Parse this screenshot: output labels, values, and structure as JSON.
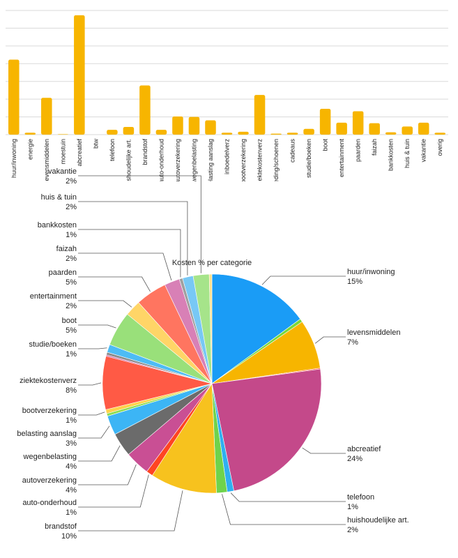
{
  "chart_data": [
    {
      "type": "bar",
      "categories": [
        "huur/inwoning",
        "energie",
        "levensmiddelen",
        "moestuin",
        "abcreatief",
        "btw",
        "telefoon",
        "huishoudelijke art.",
        "brandstof",
        "auto-onderhoud",
        "autoverzekering",
        "wegenbelasting",
        "belasting aanslag",
        "inboedelverz",
        "bootverzekering",
        "ziektekostenverz",
        "kleding/schoenen",
        "cadeaus",
        "studie/boeken",
        "boot",
        "entertainment",
        "paarden",
        "faizah",
        "bankkosten",
        "huis & tuin",
        "vakantie",
        "overig"
      ],
      "values": [
        15.7,
        0.4,
        7.7,
        0.1,
        25.0,
        0.0,
        1.0,
        1.6,
        10.3,
        1.0,
        3.8,
        3.7,
        3.0,
        0.4,
        0.6,
        8.3,
        0.2,
        0.4,
        1.2,
        5.4,
        2.5,
        4.9,
        2.4,
        0.5,
        1.7,
        2.5,
        0.4
      ],
      "color": "#f7b500",
      "grid": true
    },
    {
      "type": "pie",
      "title": "Kosten % per categorie",
      "slices": [
        {
          "name": "huur/inwoning",
          "value": 15.2,
          "color": "#1a9cf6",
          "label": true,
          "pct": "15%"
        },
        {
          "name": "energie",
          "value": 0.5,
          "color": "#7ad83a",
          "label": false
        },
        {
          "name": "levensmiddelen",
          "value": 7.4,
          "color": "#f7b500",
          "label": true,
          "pct": "7%"
        },
        {
          "name": "moestuin",
          "value": 0.15,
          "color": "#ff5b3a",
          "label": false
        },
        {
          "name": "abcreatief",
          "value": 24.3,
          "color": "#c4498a",
          "label": true,
          "pct": "24%"
        },
        {
          "name": "telefoon",
          "value": 1.0,
          "color": "#2fb0f0",
          "label": true,
          "pct": "1%"
        },
        {
          "name": "huishoudelijke art.",
          "value": 1.6,
          "color": "#6fd34c",
          "label": true,
          "pct": "2%"
        },
        {
          "name": "brandstof",
          "value": 10.0,
          "color": "#f7c21e",
          "label": true,
          "pct": "10%"
        },
        {
          "name": "auto-onderhoud",
          "value": 1.0,
          "color": "#ff4422",
          "label": true,
          "pct": "1%"
        },
        {
          "name": "autoverzekering",
          "value": 3.7,
          "color": "#c94f94",
          "label": true,
          "pct": "4%"
        },
        {
          "name": "wegenbelasting",
          "value": 3.6,
          "color": "#6b6b6b",
          "label": true,
          "pct": "4%"
        },
        {
          "name": "belasting aanslag",
          "value": 2.9,
          "color": "#3cb5f5",
          "label": true,
          "pct": "3%"
        },
        {
          "name": "inboedelverz",
          "value": 0.4,
          "color": "#8ddd52",
          "label": false
        },
        {
          "name": "bootverzekering",
          "value": 0.6,
          "color": "#ffd24a",
          "label": true,
          "pct": "1%"
        },
        {
          "name": "ziektekostenverz",
          "value": 8.0,
          "color": "#ff5a45",
          "label": true,
          "pct": "8%"
        },
        {
          "name": "kleding/schoenen",
          "value": 0.2,
          "color": "#d16aa8",
          "label": false
        },
        {
          "name": "cadeaus",
          "value": 0.4,
          "color": "#8a8a8a",
          "label": false
        },
        {
          "name": "studie/boeken",
          "value": 1.2,
          "color": "#4dbcf5",
          "label": true,
          "pct": "1%"
        },
        {
          "name": "boot",
          "value": 5.2,
          "color": "#99e07a",
          "label": true,
          "pct": "5%"
        },
        {
          "name": "entertainment",
          "value": 2.4,
          "color": "#ffd567",
          "label": true,
          "pct": "2%"
        },
        {
          "name": "paarden",
          "value": 4.7,
          "color": "#ff7560",
          "label": true,
          "pct": "5%"
        },
        {
          "name": "faizah",
          "value": 2.3,
          "color": "#d880b6",
          "label": true,
          "pct": "2%"
        },
        {
          "name": "bankkosten",
          "value": 0.5,
          "color": "#a0a0a0",
          "label": true,
          "pct": "1%"
        },
        {
          "name": "huis & tuin",
          "value": 1.6,
          "color": "#78c8f5",
          "label": true,
          "pct": "2%"
        },
        {
          "name": "vakantie",
          "value": 2.4,
          "color": "#a6e48a",
          "label": true,
          "pct": "2%"
        },
        {
          "name": "overig",
          "value": 0.4,
          "color": "#ffe08a",
          "label": false
        }
      ]
    }
  ]
}
